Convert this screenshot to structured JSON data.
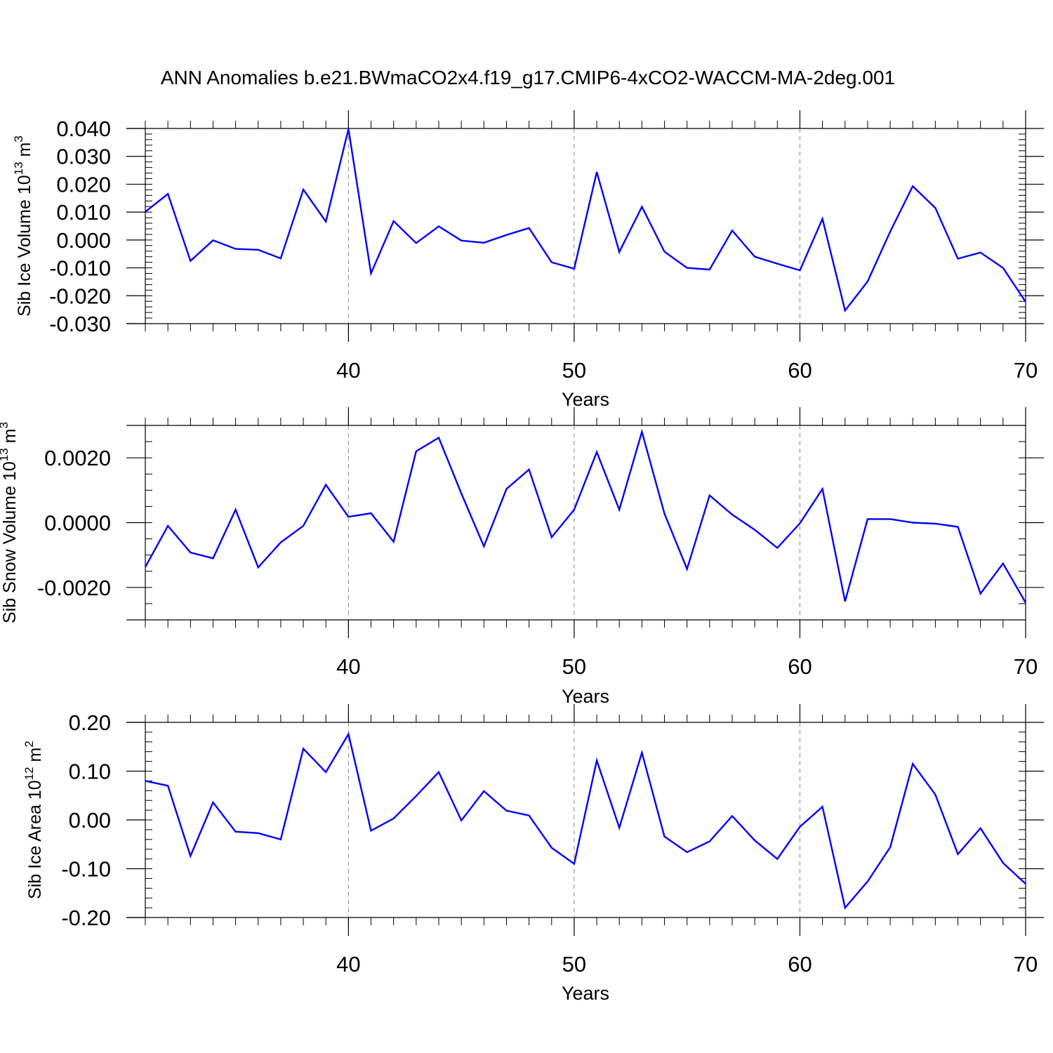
{
  "title": "ANN Anomalies b.e21.BWmaCO2x4.f19_g17.CMIP6-4xCO2-WACCM-MA-2deg.001",
  "colors": {
    "line": "#0000ff",
    "frame": "#000000",
    "grid": "#888888",
    "background": "#ffffff"
  },
  "chart_data": [
    {
      "type": "line",
      "ylabel_main": "Sib Ice Volume 10",
      "ylabel_exp": "13",
      "ylabel_unit": " m",
      "ylabel_unit_exp": "3",
      "xlabel": "Years",
      "xlim": [
        31,
        70
      ],
      "ylim": [
        -0.03,
        0.04
      ],
      "xticks": [
        40,
        50,
        60,
        70
      ],
      "xtick_labels": [
        "40",
        "50",
        "60",
        "70"
      ],
      "yticks": [
        -0.03,
        -0.02,
        -0.01,
        0.0,
        0.01,
        0.02,
        0.03,
        0.04
      ],
      "ytick_labels": [
        "-0.030",
        "-0.020",
        "-0.010",
        "0.000",
        "0.010",
        "0.020",
        "0.030",
        "0.040"
      ],
      "ygrid_minor_step": 0.002,
      "vgrid": [
        40,
        50,
        60
      ],
      "x": [
        31,
        32,
        33,
        34,
        35,
        36,
        37,
        38,
        39,
        40,
        41,
        42,
        43,
        44,
        45,
        46,
        47,
        48,
        49,
        50,
        51,
        52,
        53,
        54,
        55,
        56,
        57,
        58,
        59,
        60,
        61,
        62,
        63,
        64,
        65,
        66,
        67,
        68,
        69,
        70
      ],
      "values": [
        0.0101,
        0.0165,
        -0.0075,
        -0.0001,
        -0.0032,
        -0.0035,
        -0.0066,
        0.0181,
        0.0066,
        0.0398,
        -0.012,
        0.0068,
        -0.0011,
        0.0049,
        -0.0002,
        -0.001,
        0.0018,
        0.0043,
        -0.008,
        -0.0103,
        0.0244,
        -0.0043,
        0.0119,
        -0.0042,
        -0.01,
        -0.0106,
        0.0034,
        -0.006,
        -0.0085,
        -0.0109,
        0.0076,
        -0.0253,
        -0.0149,
        0.003,
        0.0193,
        0.0115,
        -0.0067,
        -0.0045,
        -0.01,
        -0.0222
      ]
    },
    {
      "type": "line",
      "ylabel_main": "Sib Snow Volume 10",
      "ylabel_exp": "13",
      "ylabel_unit": " m",
      "ylabel_unit_exp": "3",
      "xlabel": "Years",
      "xlim": [
        31,
        70
      ],
      "ylim": [
        -0.003,
        0.003
      ],
      "xticks": [
        40,
        50,
        60,
        70
      ],
      "xtick_labels": [
        "40",
        "50",
        "60",
        "70"
      ],
      "yticks": [
        -0.002,
        0.0,
        0.002
      ],
      "ytick_labels": [
        "-0.0020",
        "0.0000",
        "0.0020"
      ],
      "ygrid_minor_step": 0.0005,
      "vgrid": [
        40,
        50,
        60
      ],
      "x": [
        31,
        32,
        33,
        34,
        35,
        36,
        37,
        38,
        39,
        40,
        41,
        42,
        43,
        44,
        45,
        46,
        47,
        48,
        49,
        50,
        51,
        52,
        53,
        54,
        55,
        56,
        57,
        58,
        59,
        60,
        61,
        62,
        63,
        64,
        65,
        66,
        67,
        68,
        69,
        70
      ],
      "values": [
        -0.00137,
        -0.0001,
        -0.00092,
        -0.0011,
        0.0004,
        -0.00138,
        -0.00061,
        -0.0001,
        0.00117,
        0.00018,
        0.00029,
        -0.00059,
        0.0022,
        0.00262,
        0.0009,
        -0.00073,
        0.00104,
        0.00164,
        -0.00045,
        0.0004,
        0.00218,
        0.0004,
        0.0028,
        0.00028,
        -0.00143,
        0.00084,
        0.00025,
        -0.00022,
        -0.00078,
        -2e-05,
        0.00104,
        -0.00243,
        0.00011,
        0.00011,
        0.0,
        -3e-05,
        -0.00013,
        -0.00219,
        -0.00126,
        -0.00247
      ]
    },
    {
      "type": "line",
      "ylabel_main": "Sib Ice Area 10",
      "ylabel_exp": "12",
      "ylabel_unit": " m",
      "ylabel_unit_exp": "2",
      "xlabel": "Years",
      "xlim": [
        31,
        70
      ],
      "ylim": [
        -0.2,
        0.2
      ],
      "xticks": [
        40,
        50,
        60,
        70
      ],
      "xtick_labels": [
        "40",
        "50",
        "60",
        "70"
      ],
      "yticks": [
        -0.2,
        -0.1,
        0.0,
        0.1,
        0.2
      ],
      "ytick_labels": [
        "-0.20",
        "-0.10",
        "0.00",
        "0.10",
        "0.20"
      ],
      "ygrid_minor_step": 0.02,
      "vgrid": [
        40,
        50,
        60
      ],
      "x": [
        31,
        32,
        33,
        34,
        35,
        36,
        37,
        38,
        39,
        40,
        41,
        42,
        43,
        44,
        45,
        46,
        47,
        48,
        49,
        50,
        51,
        52,
        53,
        54,
        55,
        56,
        57,
        58,
        59,
        60,
        61,
        62,
        63,
        64,
        65,
        66,
        67,
        68,
        69,
        70
      ],
      "values": [
        0.08,
        0.07,
        -0.074,
        0.036,
        -0.024,
        -0.027,
        -0.04,
        0.146,
        0.098,
        0.176,
        -0.022,
        0.003,
        0.049,
        0.098,
        -0.001,
        0.059,
        0.019,
        0.009,
        -0.057,
        -0.09,
        0.122,
        -0.016,
        0.138,
        -0.034,
        -0.066,
        -0.044,
        0.008,
        -0.042,
        -0.08,
        -0.014,
        0.027,
        -0.18,
        -0.126,
        -0.056,
        0.115,
        0.052,
        -0.07,
        -0.017,
        -0.088,
        -0.131
      ]
    }
  ]
}
